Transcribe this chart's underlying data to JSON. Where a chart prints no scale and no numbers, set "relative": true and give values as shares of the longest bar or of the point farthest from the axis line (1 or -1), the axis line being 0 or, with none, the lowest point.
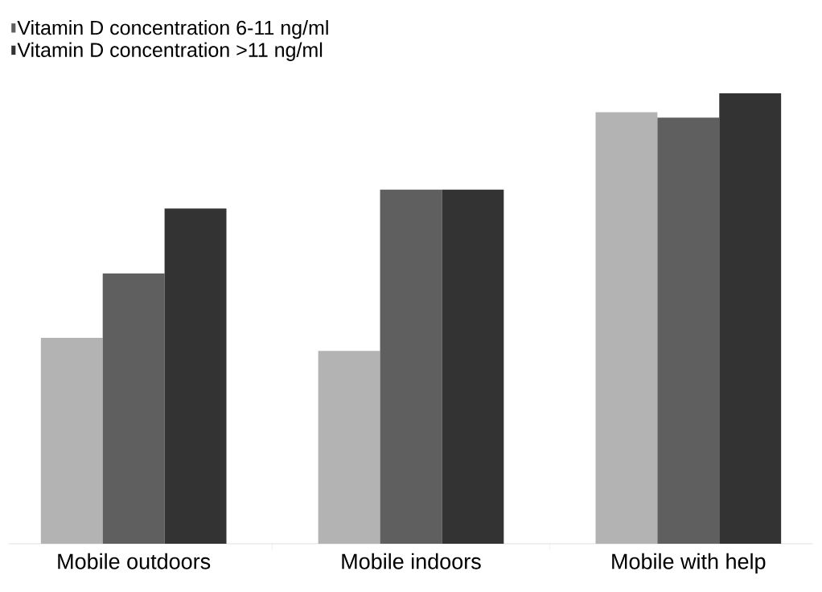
{
  "chart_data": {
    "type": "bar",
    "relative": true,
    "categories": [
      "Mobile outdoors",
      "Mobile indoors",
      "Mobile with help"
    ],
    "series": [
      {
        "color": "#b3b3b3",
        "values": [
          0.457,
          0.428,
          0.958
        ]
      },
      {
        "name": "Vitamin D concentration 6-11 ng/ml",
        "color": "#5f5f5f",
        "values": [
          0.6,
          0.786,
          0.946
        ]
      },
      {
        "name": "Vitamin D concentration >11 ng/ml",
        "color": "#333333",
        "values": [
          0.744,
          0.786,
          1
        ]
      }
    ],
    "legend": "top left",
    "grid": false
  }
}
